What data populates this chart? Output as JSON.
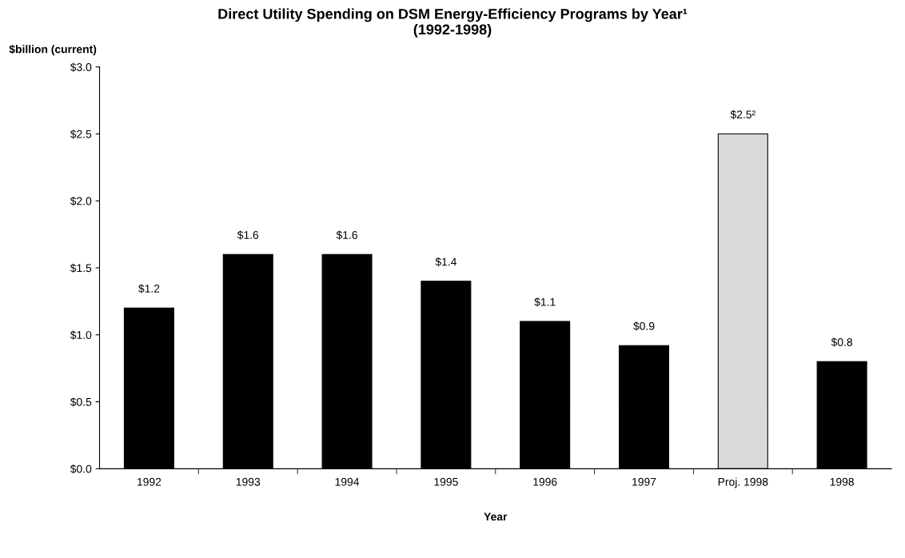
{
  "chart_data": {
    "type": "bar",
    "title": "Direct Utility Spending on DSM Energy-Efficiency Programs by Year¹\n(1992-1998)",
    "xlabel": "Year",
    "ylabel": "$billion (current)",
    "categories": [
      "1992",
      "1993",
      "1994",
      "1995",
      "1996",
      "1997",
      "Proj. 1998",
      "1998"
    ],
    "values": [
      1.2,
      1.6,
      1.6,
      1.4,
      1.1,
      0.92,
      2.5,
      0.8
    ],
    "colors": [
      "#000000",
      "#000000",
      "#000000",
      "#000000",
      "#000000",
      "#000000",
      "#d9d9d9",
      "#000000"
    ],
    "value_labels": [
      "$1.2",
      "$1.6",
      "$1.6",
      "$1.4",
      "$1.1",
      "$0.9",
      "$2.5²",
      "$0.8"
    ],
    "ylim": [
      0,
      3
    ],
    "yticks": [
      {
        "value": 0,
        "label": "$0.0"
      },
      {
        "value": 0.5,
        "label": "$0.5"
      },
      {
        "value": 1.0,
        "label": "$1.0"
      },
      {
        "value": 1.5,
        "label": "$1.5"
      },
      {
        "value": 2.0,
        "label": "$2.0"
      },
      {
        "value": 2.5,
        "label": "$2.5"
      },
      {
        "value": 3.0,
        "label": "$3.0"
      }
    ],
    "grid": false,
    "legend": false
  }
}
